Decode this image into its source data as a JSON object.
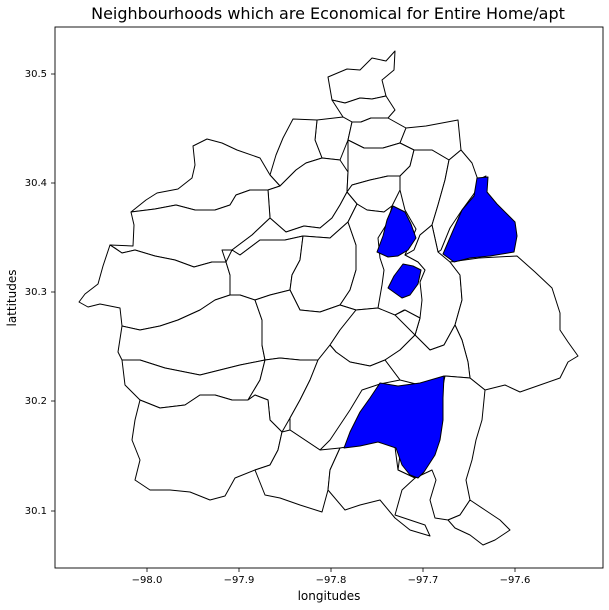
{
  "title": "Neighbourhoods which are Economical for Entire Home/apt",
  "xlabel": "longitudes",
  "ylabel": "lattitudes",
  "highlight_color": "#0000ff",
  "boundary_color": "#000000",
  "chart_data": {
    "type": "map",
    "title": "Neighbourhoods which are Economical for Entire Home/apt",
    "xlabel": "longitudes",
    "ylabel": "lattitudes",
    "x_ticks": [
      "−98.0",
      "−97.9",
      "−97.8",
      "−97.7",
      "−97.6"
    ],
    "y_ticks": [
      "30.1",
      "30.2",
      "30.3",
      "30.4",
      "30.5"
    ],
    "highlighted_neighbourhoods": 4,
    "highlight_color": "#0000ff",
    "grid": false,
    "legend": "none"
  }
}
